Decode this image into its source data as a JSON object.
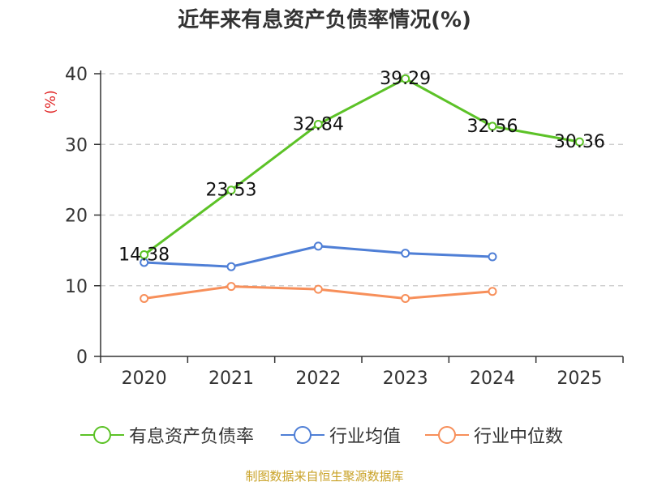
{
  "title": "近年来有息资产负债率情况(%)",
  "source": "制图数据来自恒生聚源数据库",
  "chart_data": {
    "type": "line",
    "title": "近年来有息资产负债率情况(%)",
    "ylabel": "(%)",
    "xlabel": "",
    "categories": [
      "2020",
      "2021",
      "2022",
      "2023",
      "2024",
      "2025"
    ],
    "ylim": [
      0,
      40
    ],
    "yticks": [
      0,
      10,
      20,
      30,
      40
    ],
    "grid": "horizontal-dashed",
    "legend_position": "bottom",
    "series": [
      {
        "name": "有息资产负债率",
        "color": "#5cc227",
        "values": [
          14.38,
          23.53,
          32.84,
          39.29,
          32.56,
          30.36
        ],
        "labels": [
          "14.38",
          "23.53",
          "32.84",
          "39.29",
          "32.56",
          "30.36"
        ]
      },
      {
        "name": "行业均值",
        "color": "#4f7fd6",
        "values": [
          13.3,
          12.7,
          15.6,
          14.6,
          14.1,
          null
        ]
      },
      {
        "name": "行业中位数",
        "color": "#f78f5a",
        "values": [
          8.2,
          9.9,
          9.5,
          8.2,
          9.2,
          null
        ]
      }
    ]
  }
}
